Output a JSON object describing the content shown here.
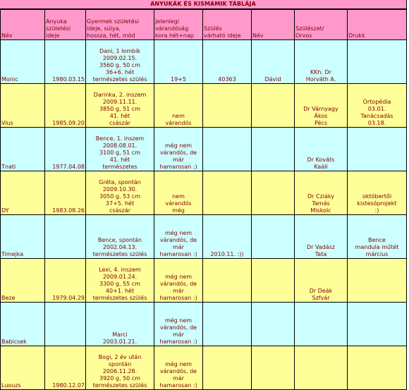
{
  "title": "ANYUKÁK ÉS KISMAMIK TÁBLÁJA",
  "headers": {
    "nev": "Név",
    "anyuka_szuletes": [
      "Anyuka",
      "születési",
      "ideje"
    ],
    "gyermek": [
      "Gyermek születési",
      "ideje, súlya,",
      "hossza, hét, mód"
    ],
    "jelenlegi": [
      "Jelenlegi",
      "várandóság",
      "kora hét+nap"
    ],
    "szules_varhato": [
      "Szülés",
      "várható ideje"
    ],
    "nev2": "Név",
    "szuleszet": [
      "Szülészet/",
      "Orvos"
    ],
    "drukk": "Drukk"
  },
  "rows": [
    {
      "nev": "Monic",
      "datum": "1980.03.15",
      "gyermek": [
        "Dani, 1 lombik",
        "2009.02.15.",
        "3560 g, 50 cm",
        "36+6. hét",
        "természetes szülés"
      ],
      "jelenlegi": [
        "19+5"
      ],
      "varhato": [
        "40363"
      ],
      "nev2": "Dávid",
      "orvos": [
        "KKh. Dr",
        "Horváth A."
      ],
      "drukk": []
    },
    {
      "nev": "Vius",
      "datum": "1985.09.20",
      "gyermek": [
        "Darinka, 2. inszem",
        "2009.11.11.",
        "3850 g, 51 cm",
        "41. hét",
        "császár"
      ],
      "jelenlegi": [
        "nem",
        "várandós"
      ],
      "varhato": [],
      "nev2": "",
      "orvos": [
        "Dr Várnyagy",
        "Ákos",
        "Pécs"
      ],
      "drukk": [
        "Ortopédia",
        "03.01.",
        "Tanácsadás",
        "03.18."
      ]
    },
    {
      "nev": "Tnati",
      "datum": "1977.04.08",
      "gyermek": [
        "Bence, 1. inszem",
        "2008.08.01.",
        "3100 g, 51 cm",
        "41. hét",
        "természetes"
      ],
      "jelenlegi": [
        "még nem",
        "várandós, de",
        "már",
        "hamarosan :)"
      ],
      "varhato": [],
      "nev2": "",
      "orvos": [
        "Dr Kováts",
        "Kaáli"
      ],
      "drukk": []
    },
    {
      "nev": "DY",
      "datum": "1983.08.26",
      "gyermek": [
        "Gréta, spontán",
        "2009.10.30.",
        "3050 g, 53 cm",
        "37+5. hét",
        "császár"
      ],
      "jelenlegi": [
        "nem",
        "várandós",
        "még"
      ],
      "varhato": [],
      "nev2": "",
      "orvos": [
        "Dr Cziáky",
        "Tamás",
        "Miskolc"
      ],
      "drukk": [
        "októbertől",
        "kistesóprojekt",
        ":)"
      ]
    },
    {
      "nev": "Timejka",
      "datum": "",
      "gyermek": [
        "Bence, spontán",
        "2002.04.13.",
        "természetes szülés"
      ],
      "jelenlegi": [
        "még nem",
        "várandós, de",
        "már",
        "hamarosan :)"
      ],
      "varhato": [
        "2010.11. :))"
      ],
      "nev2": "",
      "orvos": [
        "Dr Vadász",
        "Tata"
      ],
      "drukk": [
        "Bence",
        "mandula műtét",
        "március"
      ]
    },
    {
      "nev": "Beze",
      "datum": "1979.04.29",
      "gyermek": [
        "Lexi, 4. inszem",
        "2009.01.24.",
        "3300 g, 55 cm",
        "40+1. hét",
        "természetes szülés"
      ],
      "jelenlegi": [
        "még nem",
        "várandós, de",
        "már",
        "hamarosan :)"
      ],
      "varhato": [],
      "nev2": "",
      "orvos": [
        "Dr Deák",
        "Szfvár"
      ],
      "drukk": []
    },
    {
      "nev": "Babicsek",
      "datum": "",
      "gyermek": [
        "Marci",
        "2003.01.21."
      ],
      "jelenlegi": [
        "még nem",
        "várandós, de",
        "már",
        "hamarosan :)"
      ],
      "varhato": [],
      "nev2": "",
      "orvos": [],
      "drukk": []
    },
    {
      "nev": "Luouzs",
      "datum": "1980.12.07",
      "gyermek": [
        "Bogi, 2 év után",
        "spontán",
        "2006.11.28.",
        "3920 g, 50 cm",
        "természetes szülés"
      ],
      "jelenlegi": [
        "még nem",
        "várandós, de",
        "már",
        "hamarosan :)"
      ],
      "varhato": [],
      "nev2": "",
      "orvos": [],
      "drukk": []
    }
  ],
  "colors": {
    "header": "#ff99cc",
    "cyan_row": "#ccffff",
    "yellow_row": "#ffff99",
    "text": "#800000"
  }
}
